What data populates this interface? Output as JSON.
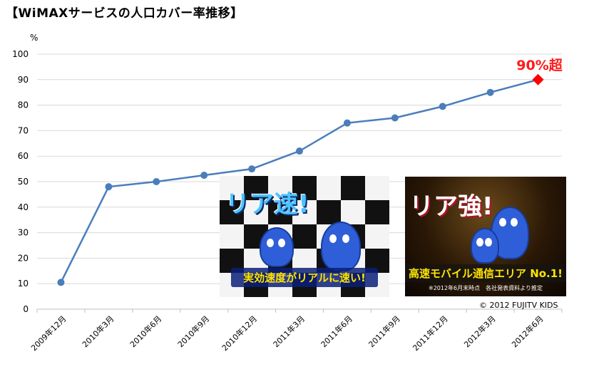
{
  "title": "【WiMAXサービスの人口カバー率推移】",
  "callout": "90%超",
  "copyright": "© 2012 FUJITV KIDS",
  "photo1": {
    "headline": "リア速!",
    "caption": "実効速度がリアルに速い!"
  },
  "photo2": {
    "headline": "リア強!",
    "caption": "高速モバイル通信エリア No.1!",
    "note": "※2012年6月末時点　各社発表資料より推定"
  },
  "colors": {
    "line": "#4a7ebb",
    "highlight": "#ff0000",
    "grid": "#d9d9d9"
  },
  "chart_data": {
    "type": "line",
    "title": "【WiMAXサービスの人口カバー率推移】",
    "ylabel": "%",
    "xlabel": "",
    "ylim": [
      0,
      100
    ],
    "yticks": [
      0,
      10,
      20,
      30,
      40,
      50,
      60,
      70,
      80,
      90,
      100
    ],
    "grid": true,
    "categories": [
      "2009年12月",
      "2010年3月",
      "2010年6月",
      "2010年9月",
      "2010年12月",
      "2011年3月",
      "2011年6月",
      "2011年9月",
      "2011年12月",
      "2012年3月",
      "2012年6月"
    ],
    "series": [
      {
        "values": [
          10.5,
          48,
          50,
          52.5,
          55,
          62,
          73,
          75,
          79.5,
          85,
          90
        ]
      }
    ],
    "annotations": [
      {
        "category": "2012年6月",
        "text": "90%超"
      }
    ]
  }
}
